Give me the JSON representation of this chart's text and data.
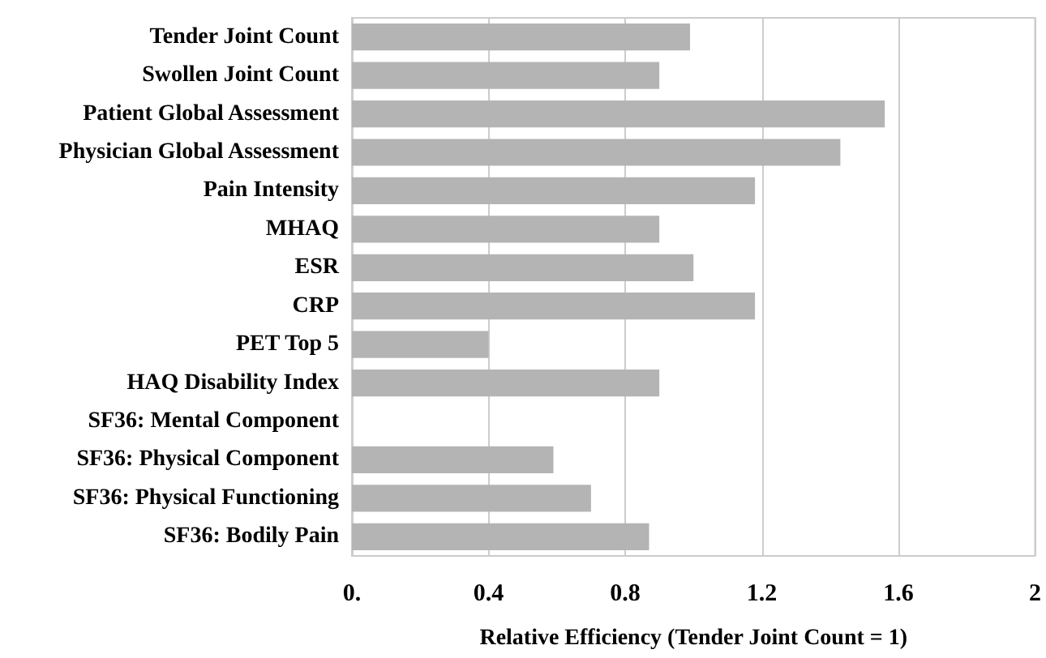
{
  "chart_data": {
    "type": "bar",
    "orientation": "horizontal",
    "xlabel": "Relative Efficiency (Tender Joint Count = 1)",
    "categories": [
      "Tender Joint Count",
      "Swollen Joint Count",
      "Patient Global Assessment",
      "Physician Global Assessment",
      "Pain Intensity",
      "MHAQ",
      "ESR",
      "CRP",
      "PET Top 5",
      "HAQ Disability Index",
      "SF36: Mental Component",
      "SF36: Physical Component",
      "SF36: Physical Functioning",
      "SF36: Bodily Pain"
    ],
    "values": [
      0.99,
      0.9,
      1.56,
      1.43,
      1.18,
      0.9,
      1.0,
      1.18,
      0.4,
      0.9,
      null,
      0.59,
      0.7,
      0.87
    ],
    "color": "#b4b4b4",
    "xlim": [
      0,
      2
    ],
    "xticks": [
      {
        "value": 0,
        "label": "0."
      },
      0.4,
      0.8,
      1.2,
      1.6,
      2
    ],
    "grid": "x"
  }
}
